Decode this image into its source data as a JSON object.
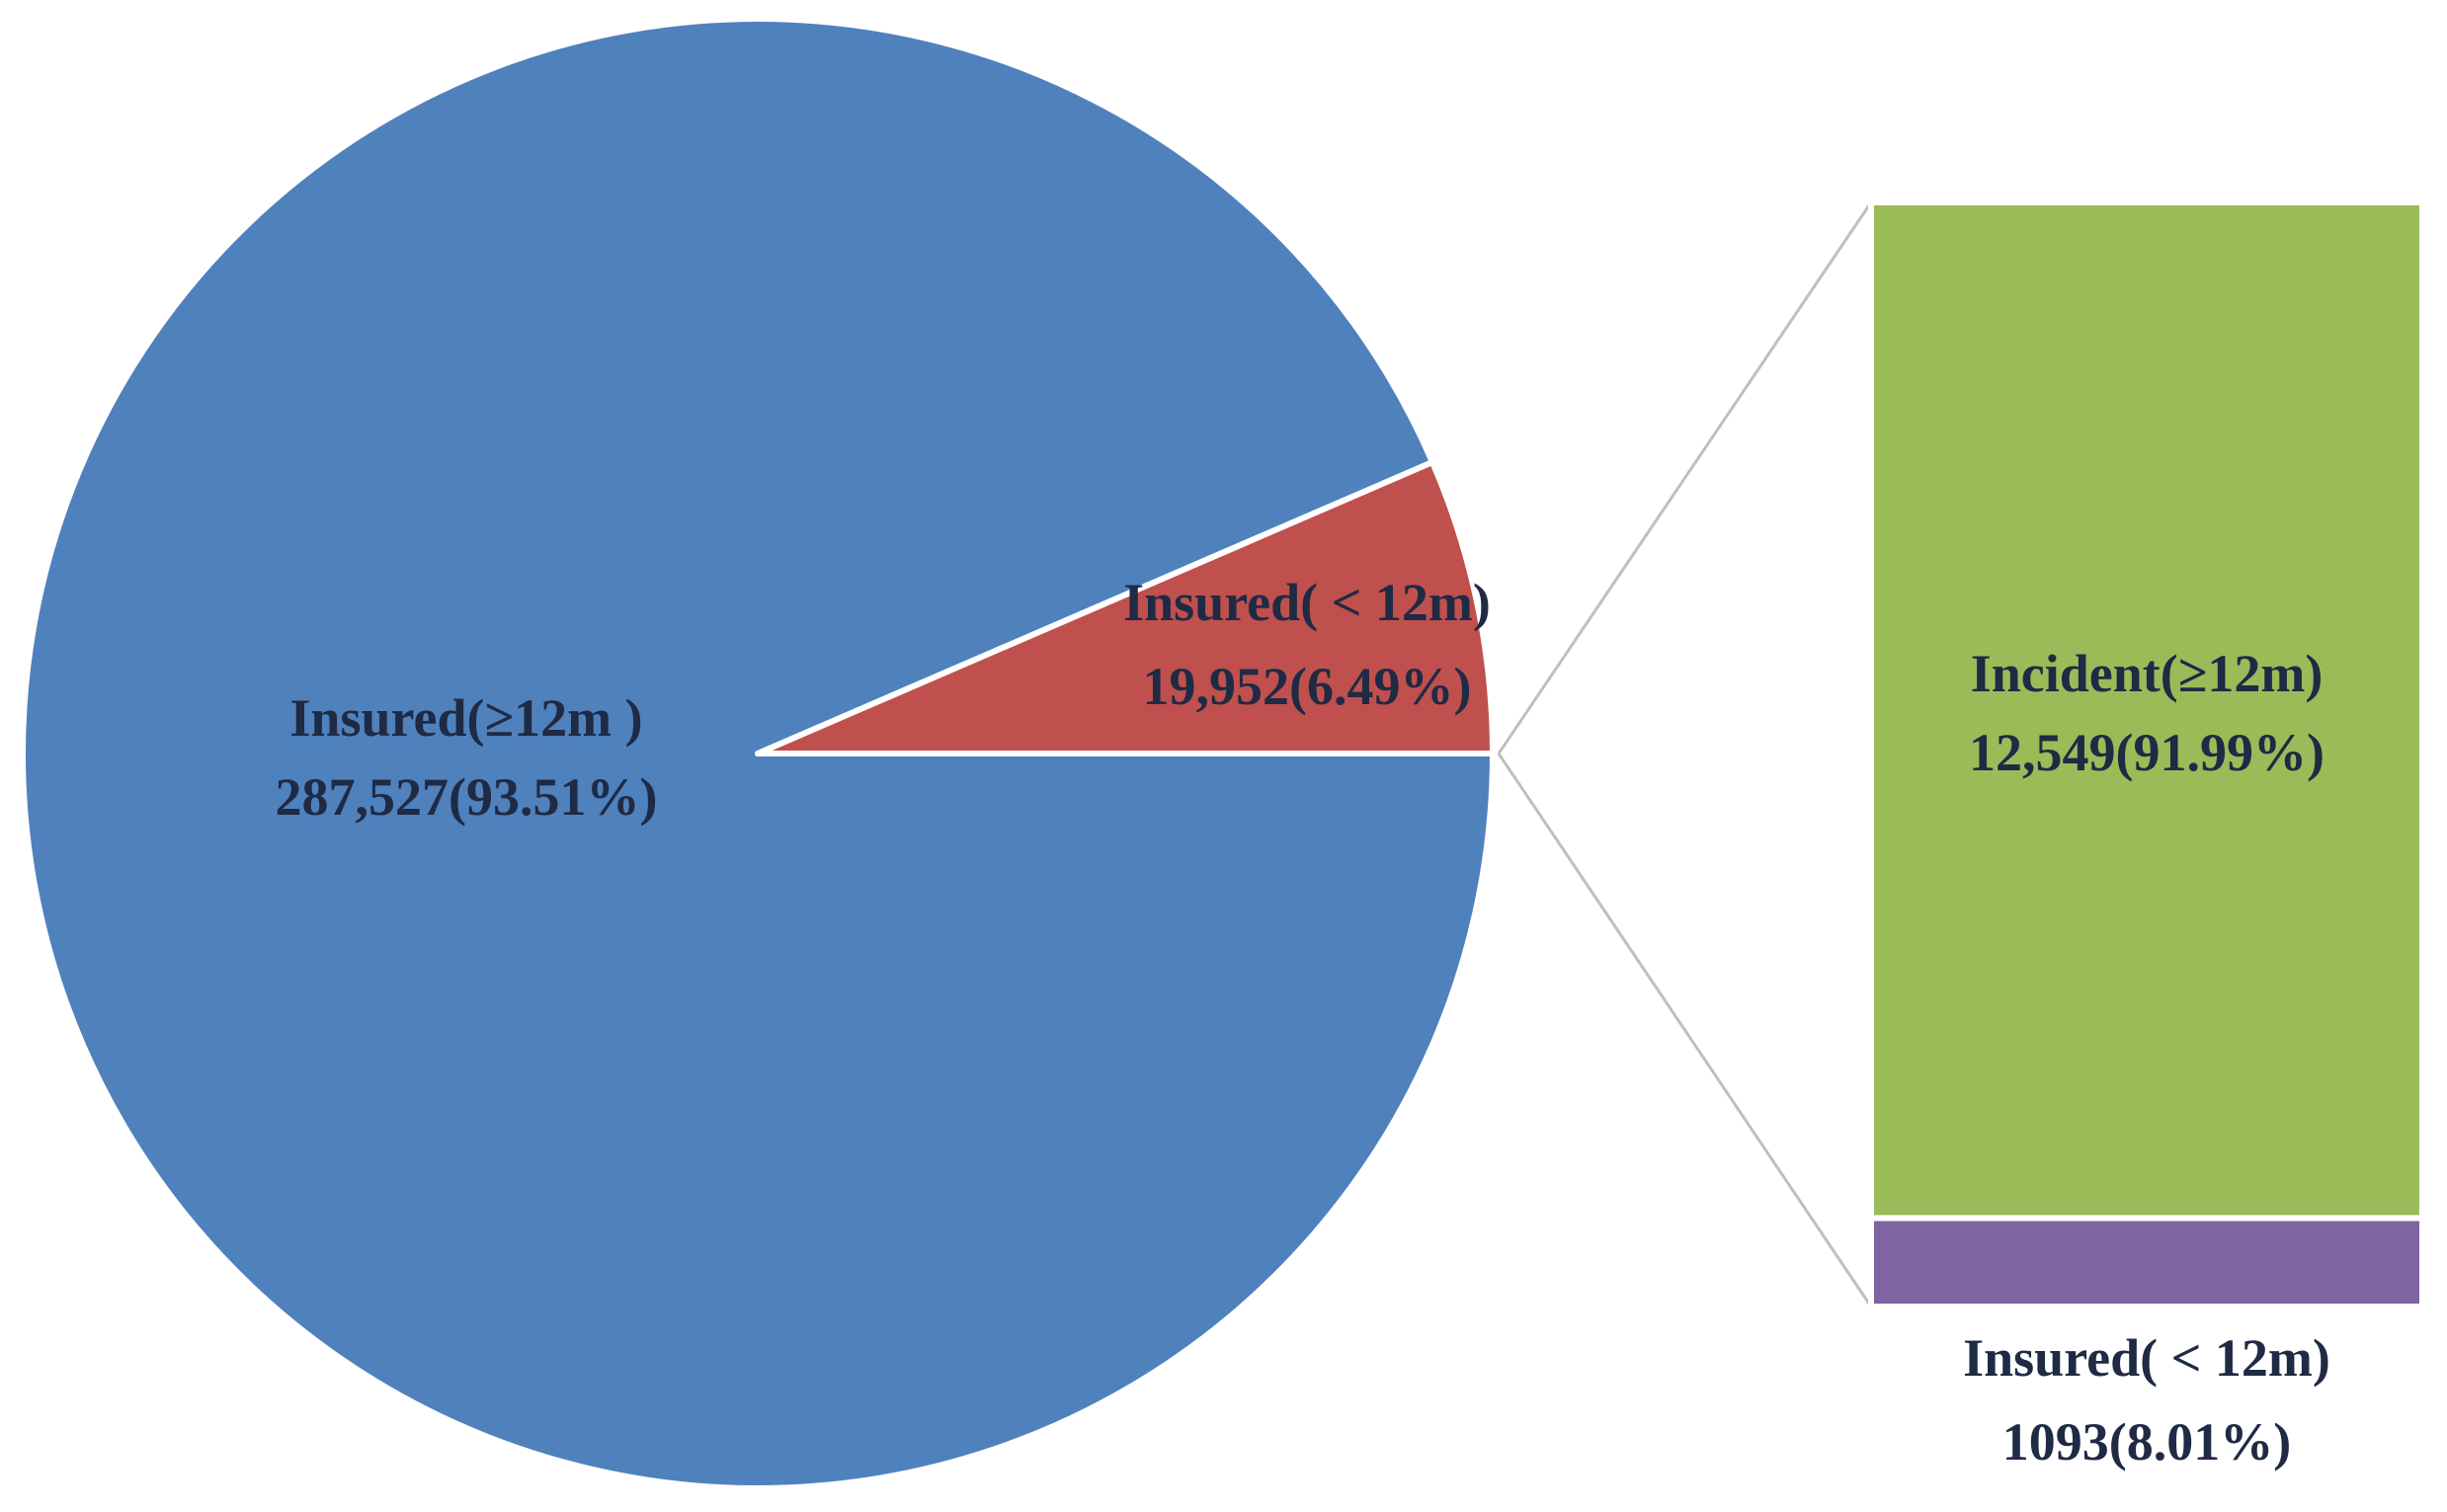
{
  "chart_data": {
    "type": "pie",
    "subtype": "bar-of-pie",
    "pie": {
      "slices": [
        {
          "label": "Insured(≥12m )",
          "value": 287527,
          "value_text": "287,527(93.51%)",
          "percent": 93.51,
          "color": "#4f81bd"
        },
        {
          "label": "Insured( < 12m)",
          "value": 19952,
          "value_text": "19,952(6.49%)",
          "percent": 6.49,
          "color": "#c0504d",
          "exploded_to_bar": true
        }
      ]
    },
    "bar": {
      "segments": [
        {
          "label": "Incident(≥12m)",
          "value": 12549,
          "value_text": "12,549(91.99%)",
          "percent": 91.99,
          "color": "#9bbb59"
        },
        {
          "label": "Insured( < 12m)",
          "value": 1093,
          "value_text": "1093(8.01%)",
          "percent": 8.01,
          "color": "#8064a2"
        }
      ]
    },
    "connector_color": "#bfbfbf",
    "title": "",
    "legend": "none"
  }
}
